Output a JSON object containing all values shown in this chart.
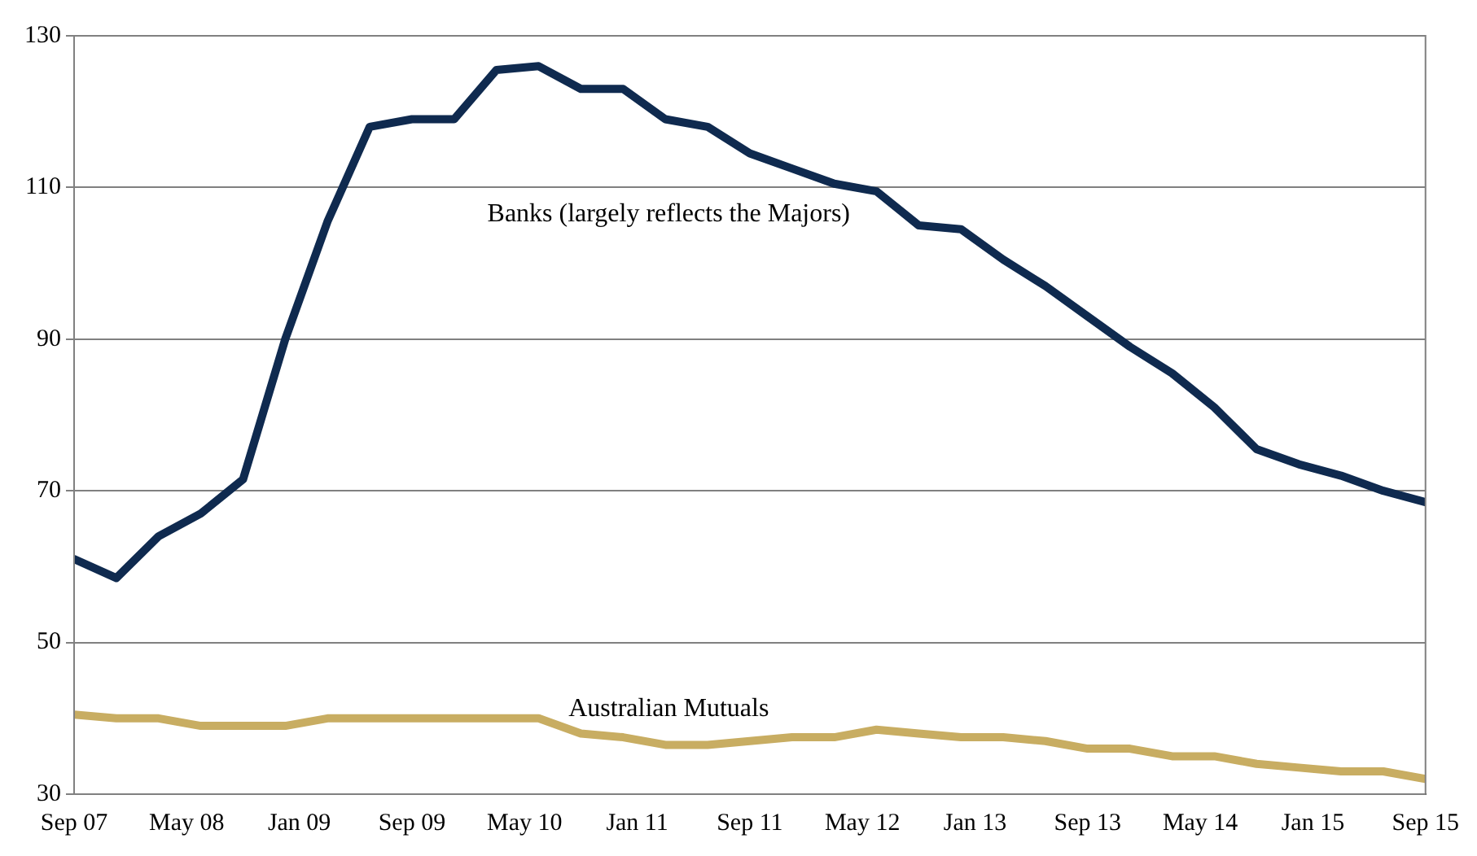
{
  "chart_data": {
    "type": "line",
    "x": [
      "2007-09",
      "2007-12",
      "2008-03",
      "2008-06",
      "2008-09",
      "2008-12",
      "2009-03",
      "2009-06",
      "2009-09",
      "2009-12",
      "2010-03",
      "2010-06",
      "2010-09",
      "2010-12",
      "2011-03",
      "2011-06",
      "2011-09",
      "2011-12",
      "2012-03",
      "2012-06",
      "2012-09",
      "2012-12",
      "2013-03",
      "2013-06",
      "2013-09",
      "2013-12",
      "2014-03",
      "2014-06",
      "2014-09",
      "2014-12",
      "2015-03",
      "2015-06",
      "2015-09"
    ],
    "series": [
      {
        "name": "Banks (largely reflects the Majors)",
        "color": "#0f2a4f",
        "values": [
          61,
          58.5,
          64,
          67,
          71.5,
          90,
          105.5,
          118,
          119,
          119,
          125.5,
          126,
          123,
          123,
          119,
          118,
          114.5,
          112.5,
          110.5,
          109.5,
          105,
          104.5,
          100.5,
          97,
          93,
          89,
          85.5,
          81,
          75.5,
          73.5,
          72,
          70,
          68.5
        ]
      },
      {
        "name": "Australian Mutuals",
        "color": "#c8ad62",
        "values": [
          40.5,
          40,
          40,
          39,
          39,
          39,
          40,
          40,
          40,
          40,
          40,
          40,
          38,
          37.5,
          36.5,
          36.5,
          37,
          37.5,
          37.5,
          38.5,
          38,
          37.5,
          37.5,
          37,
          36,
          36,
          35,
          35,
          34,
          33.5,
          33,
          33,
          32
        ]
      }
    ],
    "xlim": [
      "2007-09",
      "2015-09"
    ],
    "xticks": [
      {
        "value": "2007-09",
        "label": "Sep 07"
      },
      {
        "value": "2008-05",
        "label": "May 08"
      },
      {
        "value": "2009-01",
        "label": "Jan 09"
      },
      {
        "value": "2009-09",
        "label": "Sep 09"
      },
      {
        "value": "2010-05",
        "label": "May 10"
      },
      {
        "value": "2011-01",
        "label": "Jan 11"
      },
      {
        "value": "2011-09",
        "label": "Sep 11"
      },
      {
        "value": "2012-05",
        "label": "May 12"
      },
      {
        "value": "2013-01",
        "label": "Jan 13"
      },
      {
        "value": "2013-09",
        "label": "Sep 13"
      },
      {
        "value": "2014-05",
        "label": "May 14"
      },
      {
        "value": "2015-01",
        "label": "Jan 15"
      },
      {
        "value": "2015-09",
        "label": "Sep 15"
      }
    ],
    "ylim": [
      30,
      130
    ],
    "yticks": [
      30,
      50,
      70,
      90,
      110,
      130
    ],
    "grid": "y",
    "legend": false,
    "marker": "none",
    "line_style": "solid"
  }
}
